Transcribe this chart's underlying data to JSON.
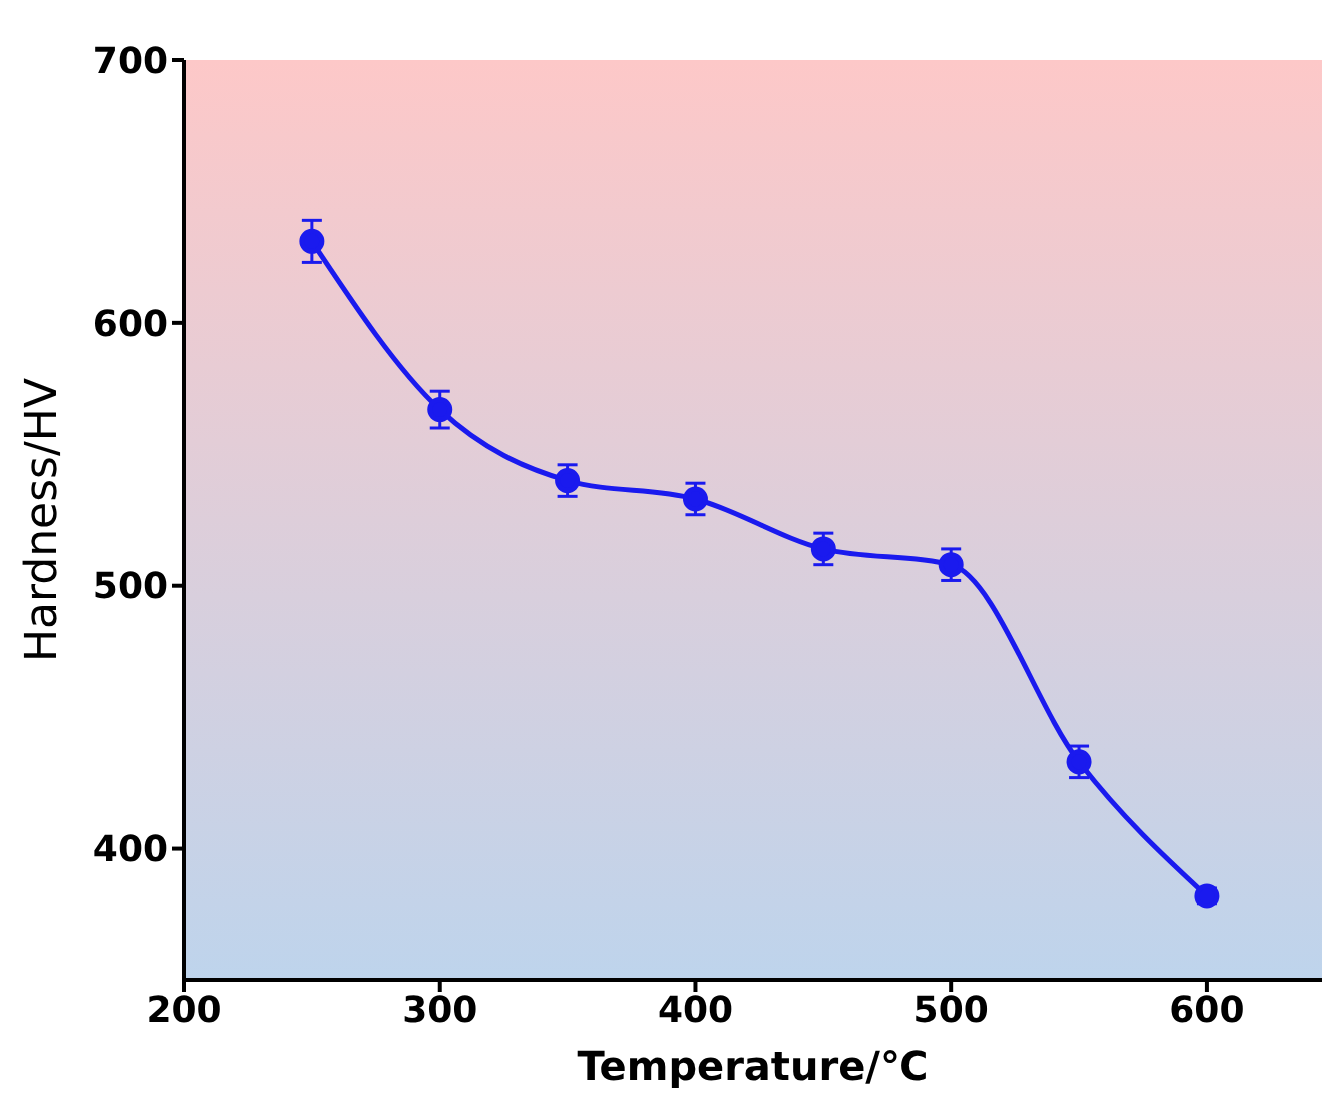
{
  "chart_data": {
    "type": "line",
    "xlabel": "Temperature/℃",
    "ylabel": "Hardness/HV",
    "x": [
      250,
      300,
      350,
      400,
      450,
      500,
      550,
      600
    ],
    "series": [
      {
        "color": "#1a1aee",
        "values": [
          631,
          567,
          540,
          533,
          514,
          508,
          433,
          382
        ],
        "errors": [
          8,
          7,
          6,
          6,
          6,
          6,
          6,
          3
        ]
      }
    ],
    "xlim": [
      200,
      645
    ],
    "xticks": [
      200,
      300,
      400,
      500,
      600
    ],
    "ylim": [
      350,
      700
    ],
    "yticks": [
      400,
      500,
      600,
      700
    ],
    "grid": false,
    "legend": false,
    "marker": "circle",
    "line_style": "solid"
  }
}
